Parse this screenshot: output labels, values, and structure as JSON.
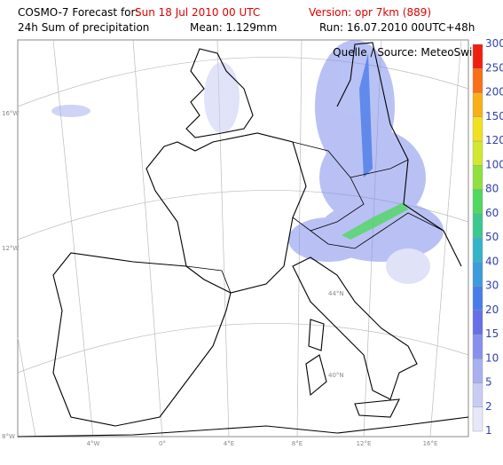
{
  "header": {
    "forecast_label": "COSMO-7 Forecast for:",
    "forecast_date": "Sun 18 Jul 2010 00 UTC",
    "version": "Version: opr 7km (889)",
    "product": "24h Sum of precipitation",
    "mean": "Mean: 1.129mm",
    "run": "Run: 16.07.2010 00UTC+48h"
  },
  "map": {
    "source": "Quelle / Source: MeteoSwiss",
    "lat_labels": [
      "44°N",
      "40°N"
    ],
    "left_labels": [
      "16°W",
      "12°W",
      "8°W"
    ],
    "bottom_labels": [
      "4°W",
      "0°",
      "4°E",
      "8°E",
      "12°E",
      "16°E"
    ]
  },
  "colorbar": {
    "labels": [
      "1",
      "2",
      "5",
      "10",
      "15",
      "20",
      "30",
      "40",
      "50",
      "60",
      "80",
      "100",
      "120",
      "150",
      "200",
      "250",
      "300"
    ],
    "colors": [
      "#e6e8f8",
      "#c8ccf4",
      "#a8b0f0",
      "#8890ec",
      "#6670e4",
      "#4a7ce8",
      "#3c9cdc",
      "#34b4c8",
      "#3cc890",
      "#50d860",
      "#90e040",
      "#d0e830",
      "#f0e020",
      "#f8b018",
      "#f87018",
      "#f02010"
    ]
  }
}
